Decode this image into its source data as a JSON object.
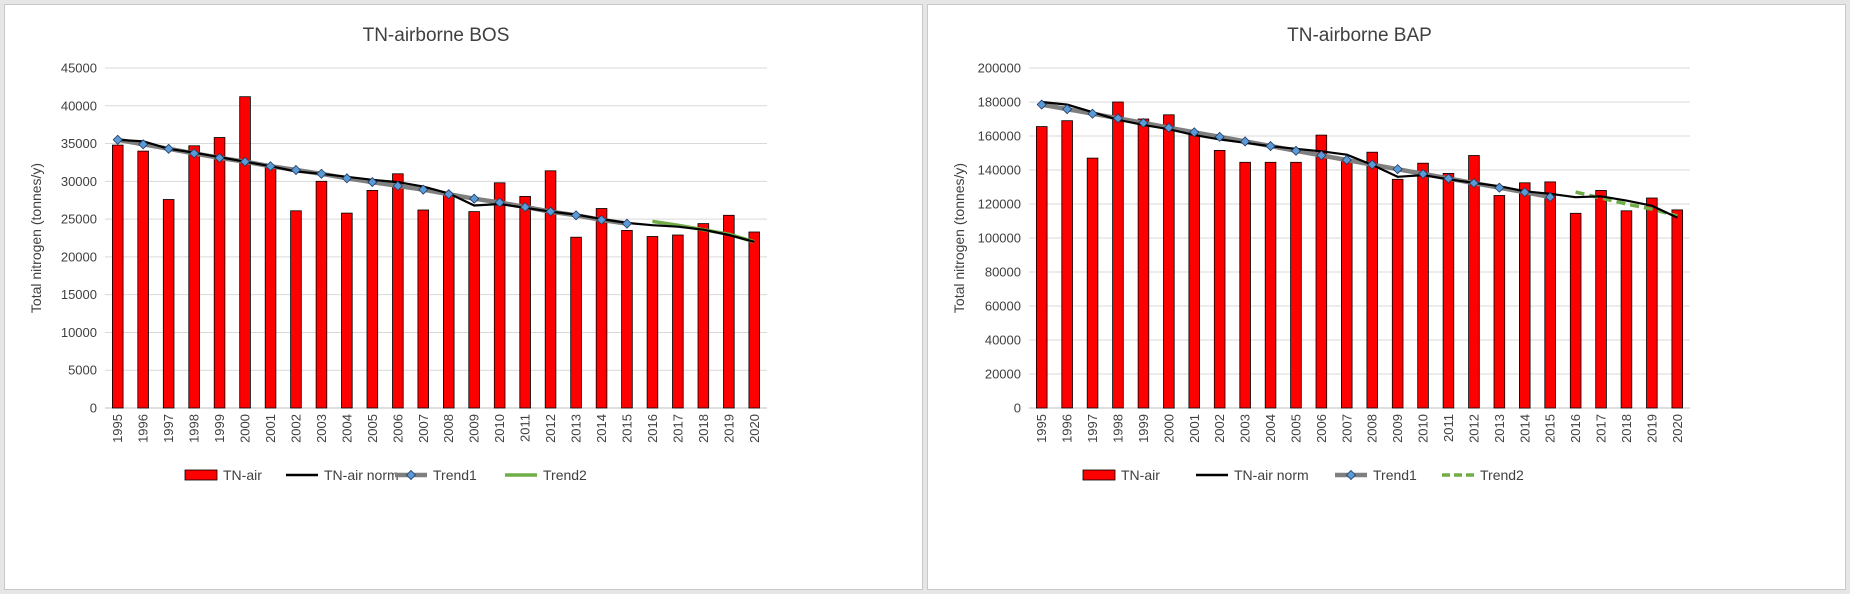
{
  "colors": {
    "bar": "#ff0000",
    "bar_outline": "#000000",
    "norm": "#000000",
    "trend1": "#7f7f7f",
    "trend1_marker": "#5b9bd5",
    "trend2": "#70ad47",
    "grid": "#d9d9d9"
  },
  "chart_data": [
    {
      "type": "bar",
      "title": "TN-airborne BOS",
      "ylabel": "Total nitrogen (tonnes/y)",
      "xlabel": "",
      "ylim": [
        0,
        45000
      ],
      "ytick_step": 5000,
      "yticks": [
        "0",
        "5000",
        "10000",
        "15000",
        "20000",
        "25000",
        "30000",
        "35000",
        "40000",
        "45000"
      ],
      "categories": [
        "1995",
        "1996",
        "1997",
        "1998",
        "1999",
        "2000",
        "2001",
        "2002",
        "2003",
        "2004",
        "2005",
        "2006",
        "2007",
        "2008",
        "2009",
        "2010",
        "2011",
        "2012",
        "2013",
        "2014",
        "2015",
        "2016",
        "2017",
        "2018",
        "2019",
        "2020"
      ],
      "grid": true,
      "legend_position": "bottom",
      "series": [
        {
          "name": "TN-air",
          "kind": "bar",
          "values": [
            34800,
            34000,
            27600,
            34700,
            35800,
            41200,
            32000,
            26100,
            30000,
            25800,
            28800,
            31000,
            26200,
            28300,
            26000,
            29800,
            28000,
            31400,
            22600,
            26400,
            23500,
            22700,
            22900,
            24400,
            25500,
            23300
          ]
        },
        {
          "name": "TN-air norm",
          "kind": "line",
          "values": [
            35500,
            35300,
            34300,
            33800,
            33200,
            32600,
            32000,
            31300,
            31000,
            30600,
            30200,
            29900,
            29300,
            28400,
            26800,
            27000,
            26500,
            26000,
            25600,
            25000,
            24500,
            24200,
            24000,
            23600,
            22900,
            22000
          ]
        },
        {
          "name": "Trend1",
          "kind": "line-marker",
          "values": [
            35500,
            34900,
            34300,
            33700,
            33100,
            32600,
            32000,
            31500,
            31000,
            30400,
            29900,
            29400,
            28900,
            28300,
            27700,
            27200,
            26600,
            26000,
            25500,
            24900,
            24400,
            null,
            null,
            null,
            null,
            null
          ]
        },
        {
          "name": "Trend2",
          "kind": "line",
          "dash": false,
          "values": [
            null,
            null,
            null,
            null,
            null,
            null,
            null,
            null,
            null,
            null,
            null,
            null,
            null,
            null,
            null,
            null,
            null,
            null,
            null,
            null,
            null,
            24700,
            24200,
            23600,
            23000,
            22000
          ]
        }
      ]
    },
    {
      "type": "bar",
      "title": "TN-airborne BAP",
      "ylabel": "Total nitrogen (tonnes/y)",
      "xlabel": "",
      "ylim": [
        0,
        200000
      ],
      "ytick_step": 20000,
      "yticks": [
        "0",
        "20000",
        "40000",
        "60000",
        "80000",
        "100000",
        "120000",
        "140000",
        "160000",
        "180000",
        "200000"
      ],
      "categories": [
        "1995",
        "1996",
        "1997",
        "1998",
        "1999",
        "2000",
        "2001",
        "2002",
        "2003",
        "2004",
        "2005",
        "2006",
        "2007",
        "2008",
        "2009",
        "2010",
        "2011",
        "2012",
        "2013",
        "2014",
        "2015",
        "2016",
        "2017",
        "2018",
        "2019",
        "2020"
      ],
      "grid": true,
      "legend_position": "bottom",
      "series": [
        {
          "name": "TN-air",
          "kind": "bar",
          "values": [
            165500,
            169000,
            147000,
            180000,
            170000,
            172500,
            161000,
            151500,
            144500,
            144500,
            144500,
            160500,
            146000,
            150500,
            134500,
            144000,
            138000,
            148500,
            125000,
            132500,
            133000,
            114500,
            128000,
            116000,
            123500,
            116500
          ]
        },
        {
          "name": "TN-air norm",
          "kind": "line",
          "values": [
            180000,
            178500,
            174000,
            169500,
            166500,
            164000,
            160500,
            158000,
            156000,
            154000,
            152500,
            151000,
            149000,
            143000,
            136000,
            137000,
            134500,
            132500,
            130500,
            127500,
            126000,
            124000,
            124500,
            122000,
            119000,
            112000
          ]
        },
        {
          "name": "Trend1",
          "kind": "line-marker",
          "values": [
            178500,
            175800,
            173100,
            170400,
            167700,
            164900,
            162200,
            159500,
            156800,
            154100,
            151300,
            148600,
            145900,
            143200,
            140500,
            137700,
            135000,
            132300,
            129600,
            126900,
            124100,
            null,
            null,
            null,
            null,
            null
          ]
        },
        {
          "name": "Trend2",
          "kind": "line",
          "dash": true,
          "values": [
            null,
            null,
            null,
            null,
            null,
            null,
            null,
            null,
            null,
            null,
            null,
            null,
            null,
            null,
            null,
            null,
            null,
            null,
            null,
            null,
            null,
            127000,
            123500,
            120000,
            117000,
            113000
          ]
        }
      ]
    }
  ]
}
